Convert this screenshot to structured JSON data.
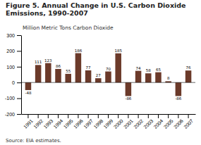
{
  "chart_data": {
    "type": "bar",
    "title": "Figure 5.  Annual Change in U.S. Carbon Dioxide\nEmissions, 1990-2007",
    "subtitle": "Million Metric Tons Carbon Dioxide",
    "annotations": [
      "Source: EIA estimates."
    ],
    "categories": [
      "1991",
      "1992",
      "1993",
      "1994",
      "1995",
      "1996",
      "1997",
      "1998",
      "1999",
      "2000",
      "2001",
      "2002",
      "2003",
      "2004",
      "2005",
      "2006",
      "2007"
    ],
    "values": [
      -48,
      111,
      123,
      86,
      55,
      186,
      77,
      27,
      70,
      185,
      -86,
      74,
      58,
      65,
      8,
      -86,
      76
    ],
    "color": "#6B3A2A",
    "ylim": [
      -200,
      300
    ],
    "yticks": [
      -200,
      -100,
      0,
      100,
      200,
      300
    ],
    "grid": false,
    "data_labels": true
  }
}
